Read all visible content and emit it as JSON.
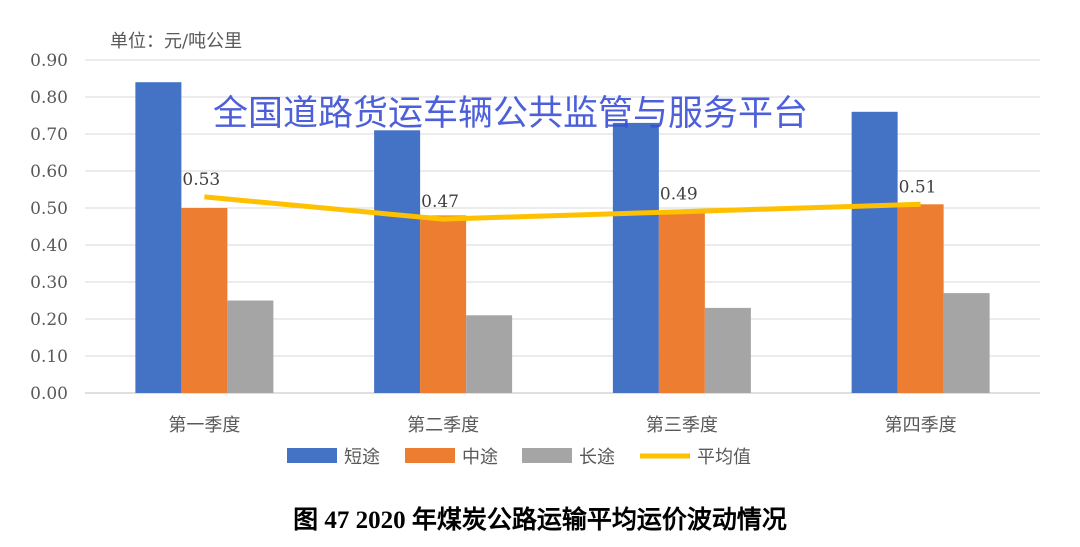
{
  "chart_data": {
    "type": "bar",
    "unit_label": "单位：元/吨公里",
    "categories": [
      "第一季度",
      "第二季度",
      "第三季度",
      "第四季度"
    ],
    "series": [
      {
        "name": "短途",
        "type": "bar",
        "color": "#4472c4",
        "values": [
          0.84,
          0.71,
          0.73,
          0.76
        ]
      },
      {
        "name": "中途",
        "type": "bar",
        "color": "#ed7d31",
        "values": [
          0.5,
          0.48,
          0.49,
          0.51
        ]
      },
      {
        "name": "长途",
        "type": "bar",
        "color": "#a5a5a5",
        "values": [
          0.25,
          0.21,
          0.23,
          0.27
        ]
      },
      {
        "name": "平均值",
        "type": "line",
        "color": "#ffc000",
        "values": [
          0.53,
          0.47,
          0.49,
          0.51
        ],
        "data_labels": [
          "0.53",
          "0.47",
          "0.49",
          "0.51"
        ]
      }
    ],
    "yticks": [
      "0.00",
      "0.10",
      "0.20",
      "0.30",
      "0.40",
      "0.50",
      "0.60",
      "0.70",
      "0.80",
      "0.90"
    ],
    "ylim": [
      0,
      0.9
    ],
    "grid": true,
    "legend": "bottom",
    "caption": "图 47  2020 年煤炭公路运输平均运价波动情况"
  },
  "watermark": "全国道路货运车辆公共监管与服务平台"
}
